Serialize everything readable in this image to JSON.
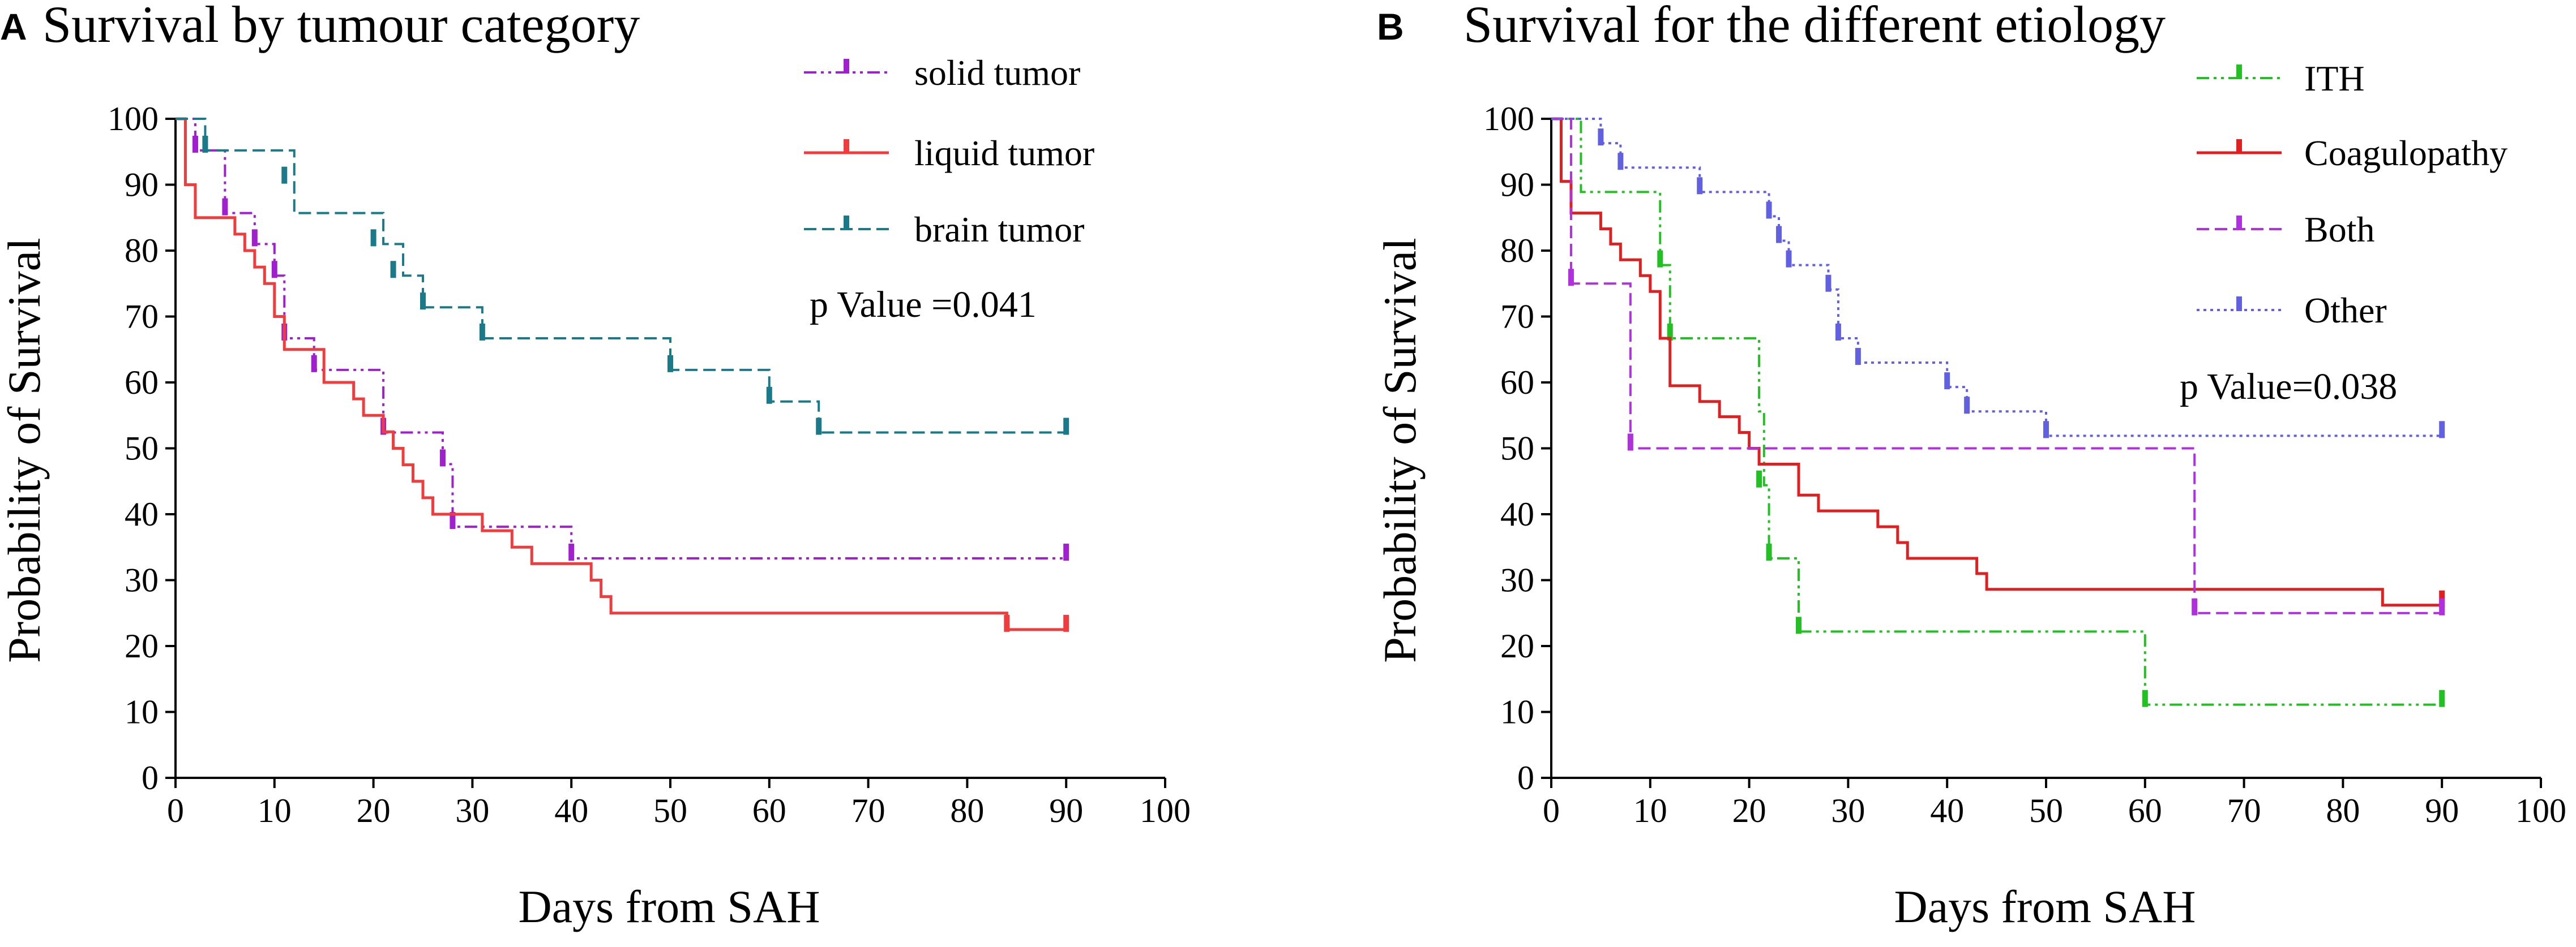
{
  "chart_data": [
    {
      "type": "line",
      "subtype": "kaplan-meier-step",
      "panel": "A",
      "title": "Survival by tumour category",
      "xlabel": "Days from SAH",
      "ylabel": "Probability of Survival",
      "xlim": [
        0,
        100
      ],
      "ylim": [
        0,
        100
      ],
      "xticks": [
        "0",
        "10",
        "20",
        "30",
        "40",
        "50",
        "60",
        "70",
        "80",
        "90",
        "100"
      ],
      "yticks": [
        "0",
        "10",
        "20",
        "30",
        "40",
        "50",
        "60",
        "70",
        "80",
        "90",
        "100"
      ],
      "legend_position": "top-right",
      "annotation": "p Value =0.041",
      "series": [
        {
          "name": "solid tumor",
          "color": "#a020d0",
          "dash": "dash-dot-dot",
          "points": [
            [
              0,
              100
            ],
            [
              1,
              100
            ],
            [
              2,
              95.2
            ],
            [
              5,
              85.7
            ],
            [
              8,
              81
            ],
            [
              10,
              76.2
            ],
            [
              11,
              66.7
            ],
            [
              14,
              61.9
            ],
            [
              21,
              52.4
            ],
            [
              27,
              47.6
            ],
            [
              28,
              38.1
            ],
            [
              40,
              33.3
            ],
            [
              90,
              33.3
            ]
          ],
          "censor": [
            [
              2,
              95.2
            ],
            [
              5,
              85.7
            ],
            [
              8,
              81
            ],
            [
              10,
              76.2
            ],
            [
              11,
              66.7
            ],
            [
              14,
              61.9
            ],
            [
              21,
              52.4
            ],
            [
              27,
              47.6
            ],
            [
              28,
              38.1
            ],
            [
              40,
              33.3
            ],
            [
              90,
              33.3
            ]
          ]
        },
        {
          "name": "liquid tumor",
          "color": "#f03c3c",
          "dash": "solid",
          "points": [
            [
              0,
              100
            ],
            [
              1,
              90
            ],
            [
              2,
              85
            ],
            [
              5,
              85
            ],
            [
              6,
              82.5
            ],
            [
              7,
              80
            ],
            [
              8,
              77.5
            ],
            [
              9,
              75
            ],
            [
              10,
              70
            ],
            [
              11,
              65
            ],
            [
              14,
              65
            ],
            [
              15,
              60
            ],
            [
              18,
              57.5
            ],
            [
              19,
              55
            ],
            [
              21,
              52.5
            ],
            [
              22,
              50
            ],
            [
              23,
              47.5
            ],
            [
              24,
              45
            ],
            [
              25,
              42.5
            ],
            [
              26,
              40
            ],
            [
              30,
              40
            ],
            [
              31,
              37.5
            ],
            [
              34,
              35
            ],
            [
              36,
              32.5
            ],
            [
              42,
              30
            ],
            [
              43,
              27.5
            ],
            [
              44,
              25
            ],
            [
              84,
              25
            ],
            [
              84,
              22.5
            ],
            [
              90,
              22.5
            ]
          ],
          "censor": [
            [
              84,
              22.5
            ],
            [
              90,
              22.5
            ]
          ]
        },
        {
          "name": "brain tumor",
          "color": "#1a7a8a",
          "dash": "dashed",
          "points": [
            [
              0,
              100
            ],
            [
              3,
              95.2
            ],
            [
              11,
              95.2
            ],
            [
              12,
              85.7
            ],
            [
              20,
              85.7
            ],
            [
              21,
              81
            ],
            [
              23,
              76.2
            ],
            [
              25,
              71.4
            ],
            [
              31,
              66.7
            ],
            [
              50,
              61.9
            ],
            [
              60,
              57.1
            ],
            [
              65,
              52.4
            ],
            [
              90,
              52.4
            ]
          ],
          "censor": [
            [
              3,
              95.2
            ],
            [
              11,
              90.5
            ],
            [
              20,
              81
            ],
            [
              22,
              76.2
            ],
            [
              25,
              71.4
            ],
            [
              31,
              66.7
            ],
            [
              50,
              61.9
            ],
            [
              60,
              57.1
            ],
            [
              65,
              52.4
            ],
            [
              90,
              52.4
            ]
          ]
        }
      ]
    },
    {
      "type": "line",
      "subtype": "kaplan-meier-step",
      "panel": "B",
      "title": "Survival for the different etiology",
      "xlabel": "Days from SAH",
      "ylabel": "Probability of Survival",
      "xlim": [
        0,
        100
      ],
      "ylim": [
        0,
        100
      ],
      "xticks": [
        "0",
        "10",
        "20",
        "30",
        "40",
        "50",
        "60",
        "70",
        "80",
        "90",
        "100"
      ],
      "yticks": [
        "0",
        "10",
        "20",
        "30",
        "40",
        "50",
        "60",
        "70",
        "80",
        "90",
        "100"
      ],
      "legend_position": "top-right",
      "annotation": "p Value=0.038",
      "series": [
        {
          "name": "ITH",
          "color": "#22c022",
          "dash": "dash-dot-dot",
          "points": [
            [
              0,
              100
            ],
            [
              3,
              88.9
            ],
            [
              11,
              77.8
            ],
            [
              12,
              66.7
            ],
            [
              21,
              55.6
            ],
            [
              21.5,
              44.4
            ],
            [
              22,
              33.3
            ],
            [
              25,
              22.2
            ],
            [
              60,
              11.1
            ],
            [
              90,
              11.1
            ]
          ],
          "censor": [
            [
              11,
              77.8
            ],
            [
              12,
              66.7
            ],
            [
              21,
              44.4
            ],
            [
              22,
              33.3
            ],
            [
              25,
              22.2
            ],
            [
              60,
              11.1
            ],
            [
              90,
              11.1
            ]
          ]
        },
        {
          "name": "Coagulopathy",
          "color": "#e02020",
          "dash": "solid",
          "points": [
            [
              0,
              100
            ],
            [
              1,
              90.5
            ],
            [
              2,
              85.7
            ],
            [
              5,
              83.3
            ],
            [
              6,
              81
            ],
            [
              7,
              78.6
            ],
            [
              9,
              76.2
            ],
            [
              10,
              73.8
            ],
            [
              11,
              66.7
            ],
            [
              12,
              59.5
            ],
            [
              15,
              57.1
            ],
            [
              17,
              54.8
            ],
            [
              19,
              52.4
            ],
            [
              20,
              50
            ],
            [
              21,
              47.6
            ],
            [
              25,
              42.9
            ],
            [
              27,
              40.5
            ],
            [
              33,
              38.1
            ],
            [
              35,
              35.7
            ],
            [
              36,
              33.3
            ],
            [
              43,
              31
            ],
            [
              44,
              28.6
            ],
            [
              84,
              26.2
            ],
            [
              90,
              26.2
            ]
          ],
          "censor": [
            [
              90,
              26.2
            ]
          ]
        },
        {
          "name": "Both",
          "color": "#b030e0",
          "dash": "dashed",
          "points": [
            [
              0,
              100
            ],
            [
              2,
              75
            ],
            [
              8,
              50
            ],
            [
              65,
              25
            ],
            [
              90,
              25
            ]
          ],
          "censor": [
            [
              2,
              75
            ],
            [
              8,
              50
            ],
            [
              65,
              25
            ],
            [
              90,
              25
            ]
          ]
        },
        {
          "name": "Other",
          "color": "#6060e0",
          "dash": "dotted",
          "points": [
            [
              0,
              100
            ],
            [
              5,
              96.3
            ],
            [
              7,
              92.6
            ],
            [
              15,
              88.9
            ],
            [
              22,
              85.2
            ],
            [
              23,
              81.5
            ],
            [
              24,
              77.8
            ],
            [
              28,
              74.1
            ],
            [
              29,
              66.7
            ],
            [
              31,
              63
            ],
            [
              40,
              59.3
            ],
            [
              42,
              55.6
            ],
            [
              50,
              51.9
            ],
            [
              90,
              51.9
            ]
          ],
          "censor": [
            [
              5,
              96.3
            ],
            [
              7,
              92.6
            ],
            [
              15,
              88.9
            ],
            [
              22,
              85.2
            ],
            [
              23,
              81.5
            ],
            [
              24,
              77.8
            ],
            [
              28,
              74.1
            ],
            [
              29,
              66.7
            ],
            [
              31,
              63
            ],
            [
              40,
              59.3
            ],
            [
              42,
              55.6
            ],
            [
              50,
              51.9
            ],
            [
              90,
              51.9
            ]
          ]
        }
      ]
    }
  ]
}
